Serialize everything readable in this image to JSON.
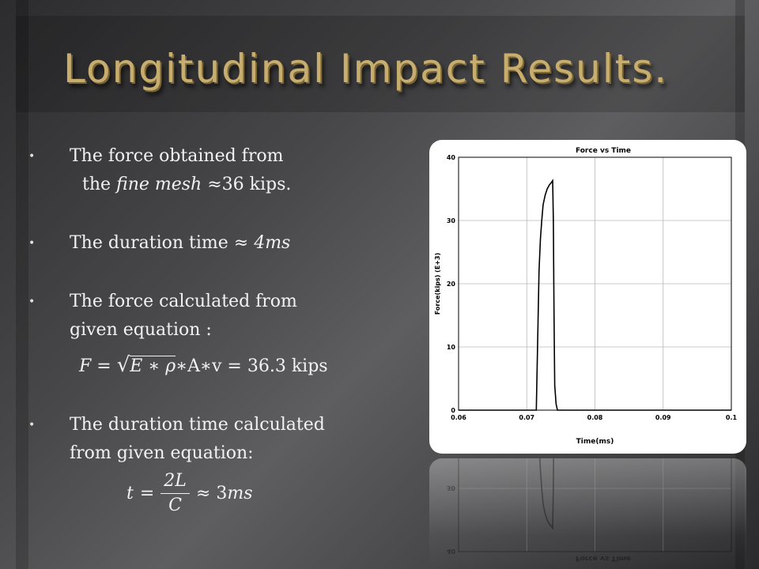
{
  "slide": {
    "title": "Longitudinal Impact Results."
  },
  "bullets": {
    "b1_line1": "The force obtained from",
    "b1_line2_pre": "the ",
    "b1_line2_math": "fine mesh",
    "b1_line2_post": " ≈36 kips.",
    "b2_text": "The duration time ≈ ",
    "b2_math": "4ms",
    "b3_line1": "The force calculated from",
    "b3_line2": "given equation :",
    "b3_eq_lhs": "F",
    "b3_eq_mid": "= ",
    "b3_eq_sqrt": "E ∗ ρ",
    "b3_eq_rest": "∗A∗v = 36.3 kips",
    "b4_line1": "The duration time  calculated",
    "b4_line2": "from given equation:",
    "b4_eq_lhs": "t",
    "b4_eq_eq": "=",
    "b4_eq_num": "2L",
    "b4_eq_den": "C",
    "b4_eq_approx": "≈ 3 ",
    "b4_eq_unit": "ms"
  },
  "chart_data": {
    "type": "line",
    "title": "Force vs Time",
    "xlabel": "Time(ms)",
    "ylabel": "Force(kips) (E+3)",
    "xlim": [
      0.06,
      0.1
    ],
    "ylim": [
      0,
      40
    ],
    "x_ticks": [
      "0.06",
      "0.07",
      "0.08",
      "0.09",
      "0.1"
    ],
    "y_ticks": [
      "0",
      "10",
      "20",
      "30",
      "40"
    ],
    "grid": true,
    "series": [
      {
        "x": [
          0.06,
          0.0714,
          0.0718,
          0.072,
          0.0722,
          0.0724,
          0.0727,
          0.073,
          0.0733,
          0.0736,
          0.0738,
          0.0739,
          0.074,
          0.0741,
          0.0743,
          0.0745,
          0.1
        ],
        "y": [
          0,
          0,
          22,
          27,
          30,
          32.5,
          34,
          35,
          35.6,
          36,
          36.3,
          30,
          15,
          4,
          1,
          0,
          0
        ]
      }
    ],
    "color": "#000000"
  }
}
